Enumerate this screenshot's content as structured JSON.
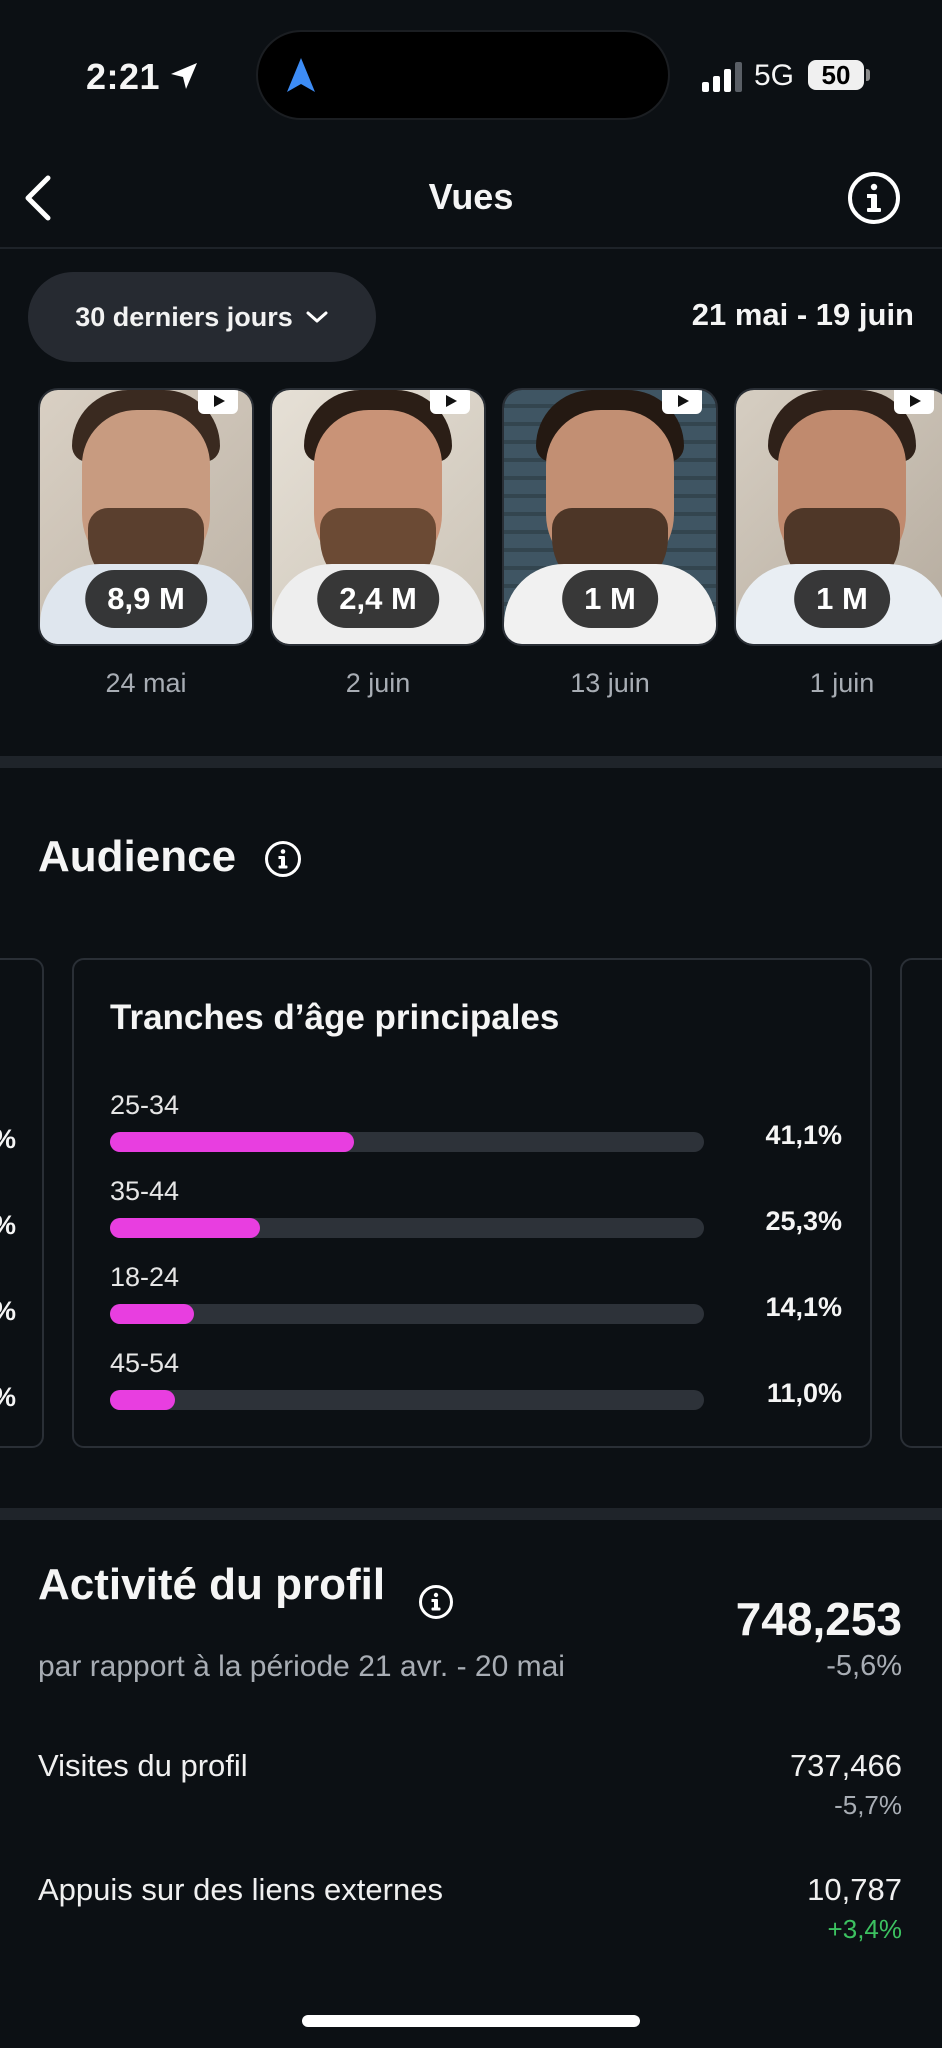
{
  "status_bar": {
    "time": "2:21",
    "network": "5G",
    "battery": "50"
  },
  "header": {
    "title": "Vues"
  },
  "period": {
    "label": "30 derniers jours",
    "date_range": "21 mai - 19 juin"
  },
  "reels": [
    {
      "views": "8,9 M",
      "date": "24 mai"
    },
    {
      "views": "2,4 M",
      "date": "2 juin"
    },
    {
      "views": "1 M",
      "date": "13 juin"
    },
    {
      "views": "1 M",
      "date": "1 juin"
    }
  ],
  "audience": {
    "title": "Audience",
    "age_card": {
      "title": "Tranches d’âge principales",
      "rows": [
        {
          "label": "25-34",
          "pct": "41,1%",
          "value": 41.1
        },
        {
          "label": "35-44",
          "pct": "25,3%",
          "value": 25.3
        },
        {
          "label": "18-24",
          "pct": "14,1%",
          "value": 14.1
        },
        {
          "label": "45-54",
          "pct": "11,0%",
          "value": 11.0
        }
      ]
    },
    "left_card_pct_glyph": "%"
  },
  "activity": {
    "title": "Activité du profil",
    "subtitle": "par rapport à la période 21 avr. - 20 mai",
    "total": "748,253",
    "total_change": "-5,6%",
    "metrics": [
      {
        "label": "Visites du profil",
        "value": "737,466",
        "change": "-5,7%",
        "trend": "neg"
      },
      {
        "label": "Appuis sur des liens externes",
        "value": "10,787",
        "change": "+3,4%",
        "trend": "pos"
      }
    ]
  },
  "colors": {
    "background": "#0c1014",
    "accent_bar": "#e83ee0",
    "positive": "#3cc160"
  }
}
